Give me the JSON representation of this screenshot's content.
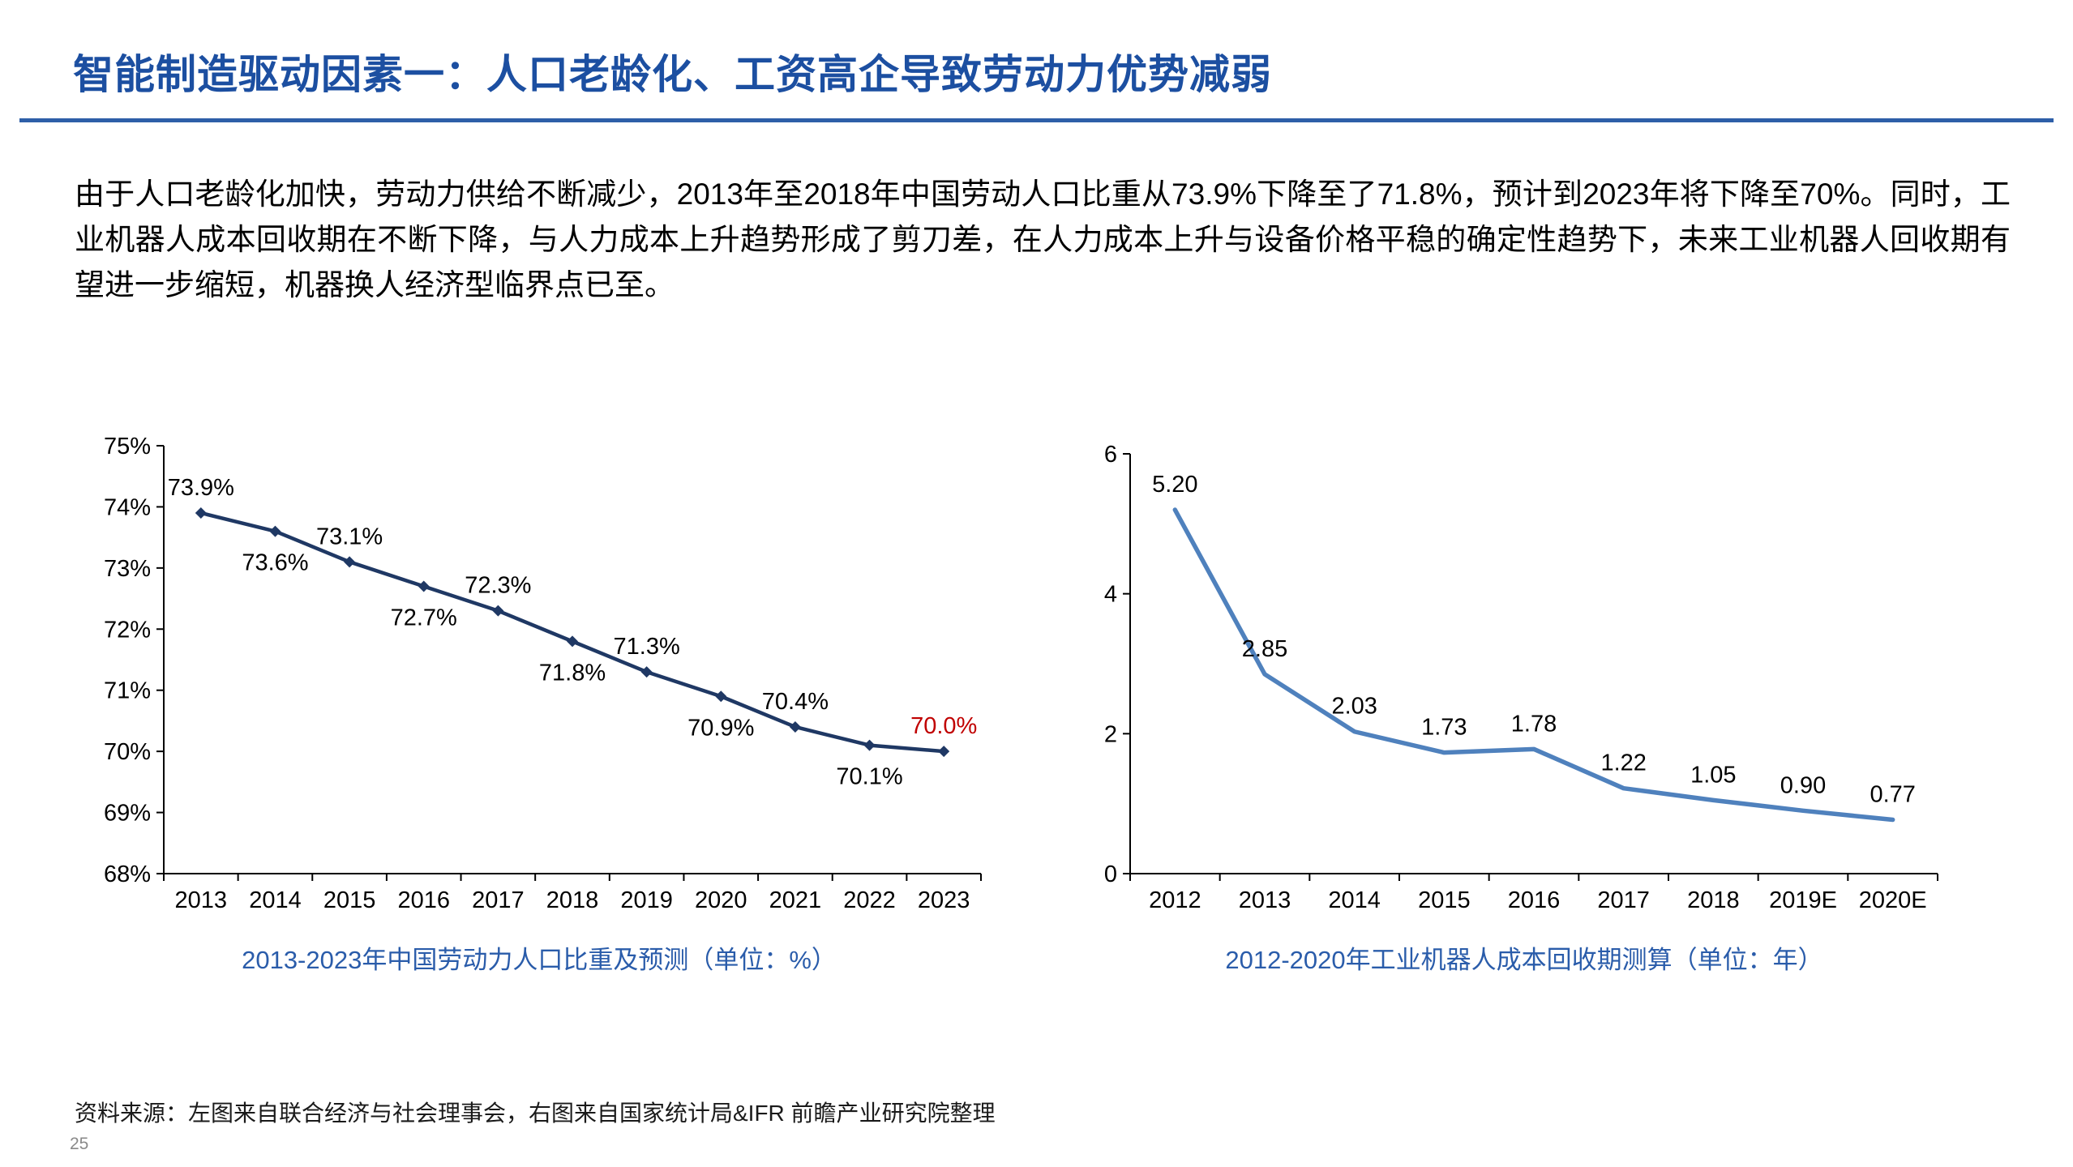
{
  "slide": {
    "title": "智能制造驱动因素一：人口老龄化、工资高企导致劳动力优势减弱",
    "body": "由于人口老龄化加快，劳动力供给不断减少，2013年至2018年中国劳动人口比重从73.9%下降至了71.8%，预计到2023年将下降至70%。同时，工业机器人成本回收期在不断下降，与人力成本上升趋势形成了剪刀差，在人力成本上升与设备价格平稳的确定性趋势下，未来工业机器人回收期有望进一步缩短，机器换人经济型临界点已至。",
    "source": "资料来源：左图来自联合经济与社会理事会，右图来自国家统计局&IFR 前瞻产业研究院整理",
    "page_number": "25"
  },
  "colors": {
    "title": "#1C4FA1",
    "divider": "#2E5FA8",
    "caption": "#2A5CAA",
    "text": "#000000",
    "axis": "#000000",
    "left_line": "#1F3864",
    "right_line": "#4F81BD",
    "highlight": "#C00000",
    "page_number": "#8A8A8A"
  },
  "chart_data": [
    {
      "type": "line",
      "title": "2013-2023年中国劳动力人口比重及预测（单位：%）",
      "categories": [
        "2013",
        "2014",
        "2015",
        "2016",
        "2017",
        "2018",
        "2019",
        "2020",
        "2021",
        "2022",
        "2023"
      ],
      "values": [
        73.9,
        73.6,
        73.1,
        72.7,
        72.3,
        71.8,
        71.3,
        70.9,
        70.4,
        70.1,
        70.0
      ],
      "labels": [
        "73.9%",
        "73.6%",
        "73.1%",
        "72.7%",
        "72.3%",
        "71.8%",
        "71.3%",
        "70.9%",
        "70.4%",
        "70.1%",
        "70.0%"
      ],
      "label_positions": [
        "above",
        "below",
        "above",
        "below",
        "above",
        "below",
        "above",
        "below",
        "above",
        "below",
        "above"
      ],
      "highlight_index": 10,
      "highlight_color": "#C00000",
      "ylim": [
        68,
        75
      ],
      "yticks": [
        {
          "value": 68,
          "label": "68%"
        },
        {
          "value": 69,
          "label": "69%"
        },
        {
          "value": 70,
          "label": "70%"
        },
        {
          "value": 71,
          "label": "71%"
        },
        {
          "value": 72,
          "label": "72%"
        },
        {
          "value": 73,
          "label": "73%"
        },
        {
          "value": 74,
          "label": "74%"
        },
        {
          "value": 75,
          "label": "75%"
        }
      ],
      "line_color": "#1F3864",
      "marker": "diamond",
      "grid": false,
      "legend": "none"
    },
    {
      "type": "line",
      "title": "2012-2020年工业机器人成本回收期测算（单位：年）",
      "categories": [
        "2012",
        "2013",
        "2014",
        "2015",
        "2016",
        "2017",
        "2018",
        "2019E",
        "2020E"
      ],
      "values": [
        5.2,
        2.85,
        2.03,
        1.73,
        1.78,
        1.22,
        1.05,
        0.9,
        0.77
      ],
      "labels": [
        "5.20",
        "2.85",
        "2.03",
        "1.73",
        "1.78",
        "1.22",
        "1.05",
        "0.90",
        "0.77"
      ],
      "label_positions": [
        "above",
        "above",
        "above",
        "above",
        "above",
        "above",
        "above",
        "above",
        "above"
      ],
      "ylim": [
        0,
        6
      ],
      "yticks": [
        {
          "value": 0,
          "label": "0"
        },
        {
          "value": 2,
          "label": "2"
        },
        {
          "value": 4,
          "label": "4"
        },
        {
          "value": 6,
          "label": "6"
        }
      ],
      "line_color": "#4F81BD",
      "marker": "none",
      "grid": false,
      "legend": "none"
    }
  ]
}
